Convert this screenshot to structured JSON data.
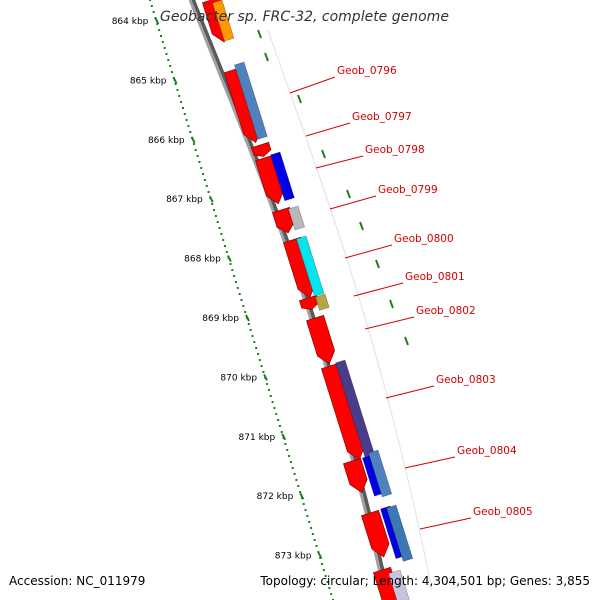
{
  "title": "Geobacter sp. FRC-32, complete genome",
  "footer": {
    "accession": "Accession: NC_011979",
    "summary": "Topology: circular; Length: 4,304,501 bp; Genes: 3,855"
  },
  "ruler": {
    "ticks": [
      "864 kbp",
      "865 kbp",
      "866 kbp",
      "867 kbp",
      "868 kbp",
      "869 kbp",
      "870 kbp",
      "871 kbp",
      "872 kbp",
      "873 kbp"
    ],
    "tick_color": "#1e7d1e"
  },
  "colors": {
    "cds_forward": "#ff0000",
    "backbone": "#888888",
    "label": "#d40000"
  },
  "genes": [
    {
      "label": "Geob_0796",
      "color": "#4f81bd"
    },
    {
      "label": "Geob_0797",
      "color": "#ff0000"
    },
    {
      "label": "Geob_0798",
      "color": "#0000e6"
    },
    {
      "label": "Geob_0799",
      "color": "#b8b8b8"
    },
    {
      "label": "Geob_0800",
      "color": "#00e5ee"
    },
    {
      "label": "Geob_0801",
      "color": "#b5a642"
    },
    {
      "label": "Geob_0802",
      "color": "#ff0000"
    },
    {
      "label": "Geob_0803",
      "color": "#483d8b"
    },
    {
      "label": "Geob_0804",
      "color": "#0000e6"
    },
    {
      "label": "Geob_0805",
      "color": "#0000e6"
    }
  ]
}
